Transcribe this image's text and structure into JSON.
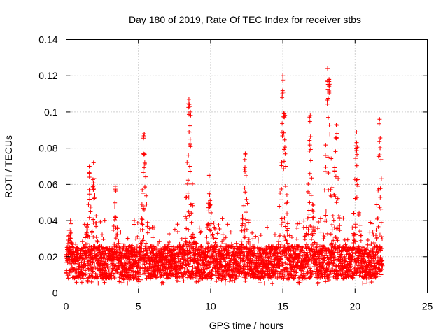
{
  "chart_data": {
    "type": "scatter",
    "title": "Day 180 of 2019, Rate Of TEC Index for receiver stbs",
    "xlabel": "GPS time / hours",
    "ylabel": "ROTI / TECUs",
    "xlim": [
      0,
      25
    ],
    "ylim": [
      0,
      0.14
    ],
    "xticks": [
      0,
      5,
      10,
      15,
      20,
      25
    ],
    "xtick_labels": [
      "0",
      "5",
      "10",
      "15",
      "20",
      "25"
    ],
    "yticks": [
      0,
      0.02,
      0.04,
      0.06,
      0.08,
      0.1,
      0.12,
      0.14
    ],
    "ytick_labels": [
      "0",
      "0.02",
      "0.04",
      "0.06",
      "0.08",
      "0.1",
      "0.12",
      "0.14"
    ],
    "grid": true,
    "marker": "+",
    "color": "#ff0000",
    "series": [
      {
        "name": "ROTI",
        "baseline_band": {
          "x_range": [
            0,
            21.9
          ],
          "y_min": 0.005,
          "y_typical": 0.017,
          "y_max": 0.035
        },
        "spikes": [
          {
            "x": 0.3,
            "y": 0.04
          },
          {
            "x": 1.6,
            "y": 0.07
          },
          {
            "x": 1.9,
            "y": 0.072
          },
          {
            "x": 3.4,
            "y": 0.059
          },
          {
            "x": 5.4,
            "y": 0.088
          },
          {
            "x": 8.5,
            "y": 0.107
          },
          {
            "x": 8.6,
            "y": 0.1
          },
          {
            "x": 9.9,
            "y": 0.065
          },
          {
            "x": 12.4,
            "y": 0.077
          },
          {
            "x": 15.0,
            "y": 0.12
          },
          {
            "x": 15.1,
            "y": 0.099
          },
          {
            "x": 16.9,
            "y": 0.098
          },
          {
            "x": 18.1,
            "y": 0.124
          },
          {
            "x": 18.2,
            "y": 0.118
          },
          {
            "x": 18.7,
            "y": 0.093
          },
          {
            "x": 20.1,
            "y": 0.089
          },
          {
            "x": 21.7,
            "y": 0.096
          }
        ]
      }
    ]
  }
}
